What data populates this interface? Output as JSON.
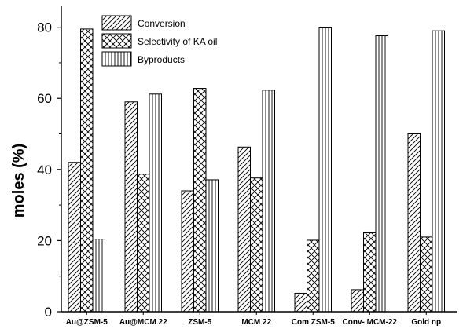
{
  "chart_data": {
    "type": "bar",
    "ylabel": "moles (%)",
    "xlabel": "",
    "ylim": [
      0,
      85
    ],
    "yticks": [
      0,
      20,
      40,
      60,
      80
    ],
    "categories": [
      "Au@ZSM-5",
      "Au@MCM 22",
      "ZSM-5",
      "MCM 22",
      "Com ZSM-5",
      "Conv- MCM-22",
      "Gold np"
    ],
    "series": [
      {
        "name": "Conversion",
        "pattern": "diagonal-hatch",
        "values": [
          42,
          59,
          34,
          46.3,
          5.2,
          6.2,
          50
        ]
      },
      {
        "name": "Selectivity of KA oil",
        "pattern": "cross-hatch",
        "values": [
          79.5,
          38.7,
          62.8,
          37.6,
          20.1,
          22.2,
          21
        ]
      },
      {
        "name": "Byproducts",
        "pattern": "vertical-lines",
        "values": [
          20.4,
          61.2,
          37.1,
          62.3,
          79.8,
          77.6,
          79
        ]
      }
    ],
    "legend_position": "top-left-inside",
    "grid": false
  }
}
